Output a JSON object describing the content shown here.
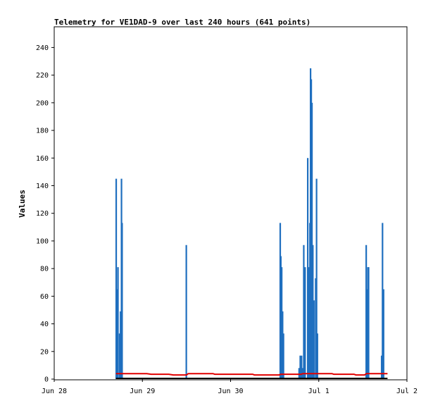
{
  "chart_data": {
    "type": "bar",
    "title": "Telemetry for VE1DAD-9 over last 240 hours (641 points)",
    "ylabel": "Values",
    "xlabel": "",
    "x_range_days": [
      0,
      4
    ],
    "ylim": [
      0,
      255
    ],
    "yticks": [
      0,
      20,
      40,
      60,
      80,
      100,
      120,
      140,
      160,
      180,
      200,
      220,
      240
    ],
    "xticks": [
      {
        "label": "Jun 28",
        "pos": 0
      },
      {
        "label": "Jun 29",
        "pos": 1
      },
      {
        "label": "Jun 30",
        "pos": 2
      },
      {
        "label": "Jul 1",
        "pos": 3
      },
      {
        "label": "Jul 2",
        "pos": 4
      }
    ],
    "grid": false,
    "colors": {
      "bars": "#1f6fbf",
      "line_red": "#e00000",
      "line_black": "#000000"
    },
    "series": [
      {
        "name": "",
        "style": "impulse",
        "color": "#1f6fbf",
        "points": [
          [
            0.703,
            145
          ],
          [
            0.713,
            65
          ],
          [
            0.723,
            81
          ],
          [
            0.742,
            33
          ],
          [
            0.752,
            49
          ],
          [
            0.763,
            145
          ],
          [
            0.77,
            113
          ],
          [
            1.498,
            97
          ],
          [
            2.563,
            113
          ],
          [
            2.57,
            89
          ],
          [
            2.58,
            81
          ],
          [
            2.59,
            49
          ],
          [
            2.6,
            33
          ],
          [
            2.777,
            8
          ],
          [
            2.79,
            17
          ],
          [
            2.805,
            17
          ],
          [
            2.818,
            8
          ],
          [
            2.83,
            97
          ],
          [
            2.845,
            81
          ],
          [
            2.875,
            160
          ],
          [
            2.89,
            81
          ],
          [
            2.9,
            113
          ],
          [
            2.907,
            225
          ],
          [
            2.915,
            217
          ],
          [
            2.923,
            200
          ],
          [
            2.933,
            97
          ],
          [
            2.945,
            57
          ],
          [
            2.965,
            73
          ],
          [
            2.975,
            145
          ],
          [
            2.985,
            33
          ],
          [
            3.538,
            97
          ],
          [
            3.548,
            65
          ],
          [
            3.558,
            81
          ],
          [
            3.565,
            81
          ],
          [
            3.713,
            17
          ],
          [
            3.723,
            113
          ],
          [
            3.735,
            65
          ]
        ]
      },
      {
        "name": "",
        "style": "line",
        "color": "#e00000",
        "points": [
          [
            0.7,
            4
          ],
          [
            0.8,
            4
          ],
          [
            0.82,
            4
          ],
          [
            1.05,
            4
          ],
          [
            1.1,
            3.5
          ],
          [
            1.3,
            3.5
          ],
          [
            1.35,
            3
          ],
          [
            1.5,
            3
          ],
          [
            1.52,
            4
          ],
          [
            1.8,
            4
          ],
          [
            1.82,
            3.5
          ],
          [
            2.25,
            3.5
          ],
          [
            2.27,
            3
          ],
          [
            2.55,
            3
          ],
          [
            2.57,
            3.5
          ],
          [
            2.8,
            3.5
          ],
          [
            2.82,
            4
          ],
          [
            3.15,
            4
          ],
          [
            3.17,
            3.5
          ],
          [
            3.4,
            3.5
          ],
          [
            3.42,
            3
          ],
          [
            3.52,
            3
          ],
          [
            3.54,
            4
          ],
          [
            3.78,
            4
          ]
        ]
      },
      {
        "name": "",
        "style": "line",
        "color": "#000000",
        "points": [
          [
            0.7,
            0.5
          ],
          [
            3.78,
            0.5
          ]
        ]
      }
    ]
  }
}
